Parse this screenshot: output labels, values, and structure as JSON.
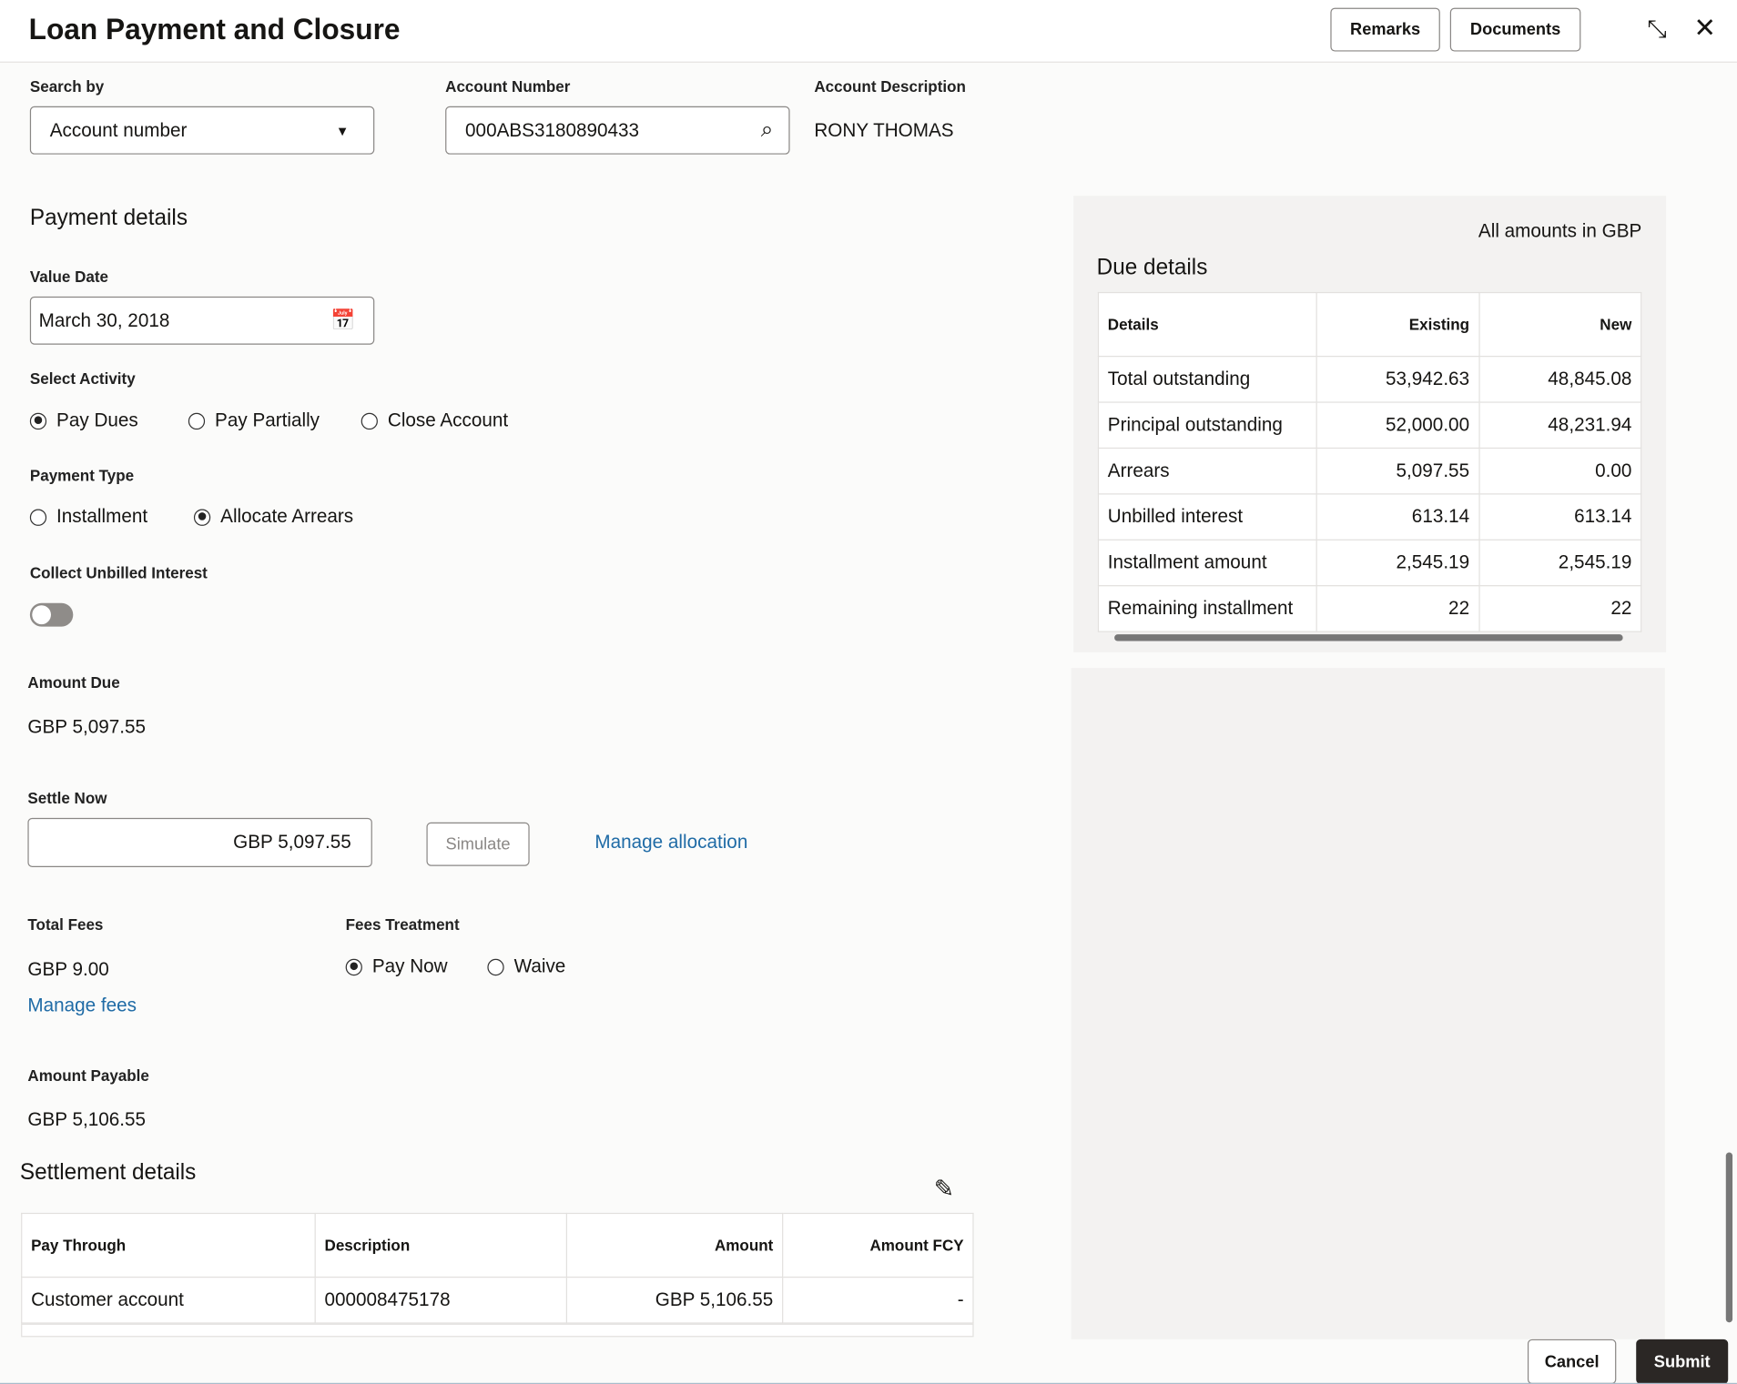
{
  "header": {
    "title": "Loan Payment and Closure",
    "remarks": "Remarks",
    "documents": "Documents"
  },
  "search": {
    "search_by_label": "Search by",
    "search_by_value": "Account number",
    "account_number_label": "Account Number",
    "account_number_value": "000ABS3180890433",
    "account_description_label": "Account Description",
    "account_description_value": "RONY THOMAS"
  },
  "payment": {
    "title": "Payment details",
    "value_date_label": "Value Date",
    "value_date": "March 30, 2018",
    "select_activity_label": "Select Activity",
    "activities": [
      "Pay Dues",
      "Pay Partially",
      "Close Account"
    ],
    "activity_selected": "Pay Dues",
    "payment_type_label": "Payment Type",
    "payment_types": [
      "Installment",
      "Allocate Arrears"
    ],
    "payment_type_selected": "Allocate Arrears",
    "collect_unbilled_label": "Collect Unbilled Interest",
    "collect_unbilled_on": false,
    "amount_due_label": "Amount Due",
    "amount_due": "GBP 5,097.55",
    "settle_now_label": "Settle Now",
    "settle_now": "GBP 5,097.55",
    "simulate": "Simulate",
    "manage_allocation": "Manage allocation",
    "total_fees_label": "Total Fees",
    "total_fees": "GBP 9.00",
    "manage_fees": "Manage fees",
    "fees_treatment_label": "Fees Treatment",
    "fees_treatments": [
      "Pay Now",
      "Waive"
    ],
    "fees_treatment_selected": "Pay Now",
    "amount_payable_label": "Amount Payable",
    "amount_payable": "GBP 5,106.55"
  },
  "due": {
    "note": "All amounts in GBP",
    "title": "Due details",
    "headers": [
      "Details",
      "Existing",
      "New"
    ],
    "rows": [
      [
        "Total outstanding",
        "53,942.63",
        "48,845.08"
      ],
      [
        "Principal outstanding",
        "52,000.00",
        "48,231.94"
      ],
      [
        "Arrears",
        "5,097.55",
        "0.00"
      ],
      [
        "Unbilled interest",
        "613.14",
        "613.14"
      ],
      [
        "Installment amount",
        "2,545.19",
        "2,545.19"
      ],
      [
        "Remaining installment",
        "22",
        "22"
      ]
    ]
  },
  "settlement": {
    "title": "Settlement details",
    "headers": [
      "Pay Through",
      "Description",
      "Amount",
      "Amount FCY"
    ],
    "rows": [
      [
        "Customer account",
        "000008475178",
        "GBP 5,106.55",
        "-"
      ]
    ]
  },
  "footer": {
    "cancel": "Cancel",
    "submit": "Submit"
  }
}
